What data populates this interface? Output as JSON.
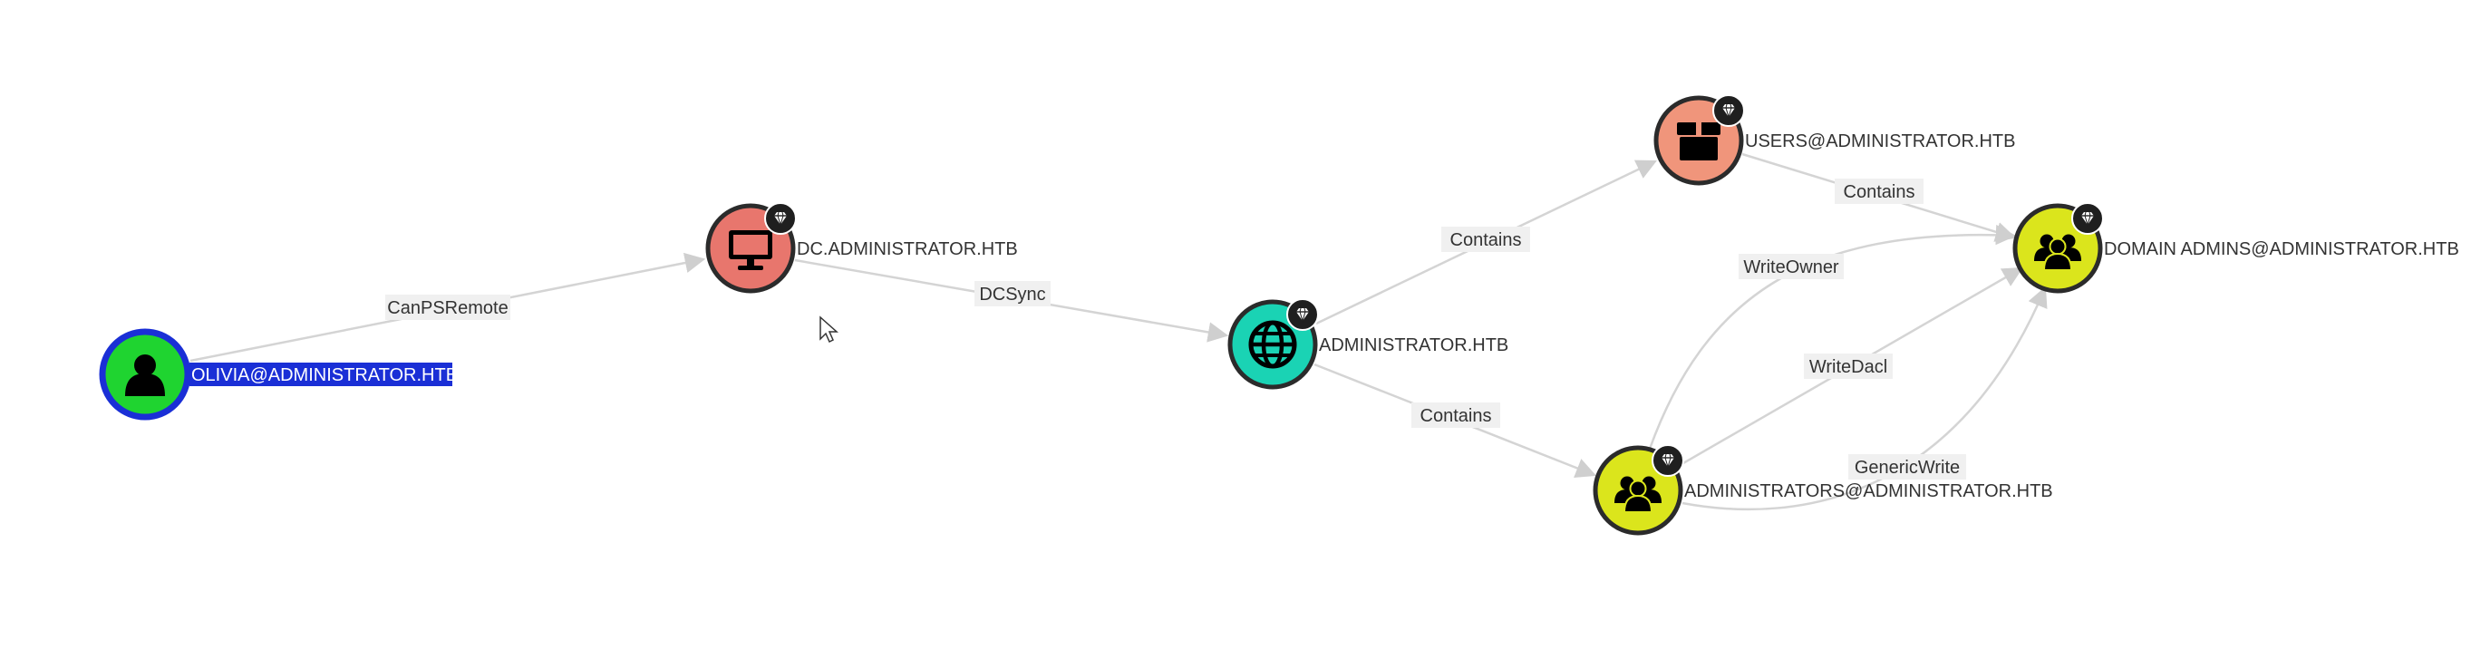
{
  "graph": {
    "colors": {
      "user": "#1fd430",
      "computer": "#e8766d",
      "domain": "#1ad3b4",
      "container": "#f0957b",
      "group": "#dbe51c",
      "selected_ring": "#1a2fd6",
      "selected_label_bg": "#1a2fd6",
      "edge": "#d4d4d4",
      "edge_label_bg": "#f0f0f0"
    },
    "nodes": [
      {
        "id": "olivia",
        "label": "OLIVIA@ADMINISTRATOR.HTB",
        "type": "user",
        "icon": "user-icon",
        "highvalue": false,
        "selected": true
      },
      {
        "id": "dc",
        "label": "DC.ADMINISTRATOR.HTB",
        "type": "computer",
        "icon": "computer-icon",
        "highvalue": true,
        "selected": false
      },
      {
        "id": "domain",
        "label": "ADMINISTRATOR.HTB",
        "type": "domain",
        "icon": "globe-icon",
        "highvalue": true,
        "selected": false
      },
      {
        "id": "users",
        "label": "USERS@ADMINISTRATOR.HTB",
        "type": "container",
        "icon": "box-icon",
        "highvalue": true,
        "selected": false
      },
      {
        "id": "domainadmins",
        "label": "DOMAIN ADMINS@ADMINISTRATOR.HTB",
        "type": "group",
        "icon": "group-icon",
        "highvalue": true,
        "selected": false
      },
      {
        "id": "administrators",
        "label": "ADMINISTRATORS@ADMINISTRATOR.HTB",
        "type": "group",
        "icon": "group-icon",
        "highvalue": true,
        "selected": false
      }
    ],
    "edges": [
      {
        "id": "e1",
        "label": "CanPSRemote",
        "source": "olivia",
        "target": "dc"
      },
      {
        "id": "e2",
        "label": "DCSync",
        "source": "dc",
        "target": "domain"
      },
      {
        "id": "e3",
        "label": "Contains",
        "source": "domain",
        "target": "users"
      },
      {
        "id": "e4",
        "label": "Contains",
        "source": "domain",
        "target": "administrators"
      },
      {
        "id": "e5",
        "label": "Contains",
        "source": "users",
        "target": "domainadmins"
      },
      {
        "id": "e6",
        "label": "WriteOwner",
        "source": "administrators",
        "target": "domainadmins"
      },
      {
        "id": "e7",
        "label": "WriteDacl",
        "source": "administrators",
        "target": "domainadmins"
      },
      {
        "id": "e8",
        "label": "GenericWrite",
        "source": "administrators",
        "target": "domainadmins"
      }
    ]
  }
}
